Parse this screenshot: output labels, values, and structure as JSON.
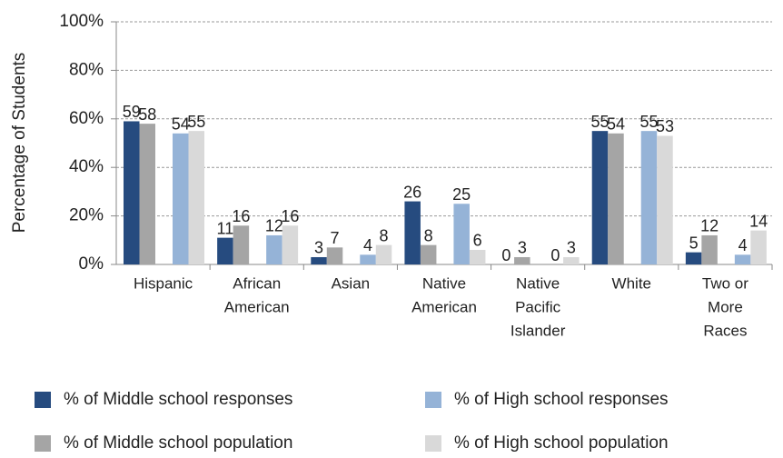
{
  "chart_data": {
    "type": "bar",
    "y_label": "Percentage of Students",
    "categories": [
      [
        "Hispanic"
      ],
      [
        "African",
        "American"
      ],
      [
        "Asian"
      ],
      [
        "Native",
        "American"
      ],
      [
        "Native",
        "Pacific",
        "Islander"
      ],
      [
        "White"
      ],
      [
        "Two or",
        "More",
        "Races"
      ]
    ],
    "series": [
      {
        "name": "% of Middle school responses",
        "color": "#264b7f",
        "values": [
          59,
          11,
          3,
          26,
          0,
          55,
          5
        ]
      },
      {
        "name": "% of Middle school population",
        "color": "#a5a5a5",
        "values": [
          58,
          16,
          7,
          8,
          3,
          54,
          12
        ]
      },
      {
        "name": "% of High school responses",
        "color": "#95b3d7",
        "values": [
          54,
          12,
          4,
          25,
          0,
          55,
          4
        ]
      },
      {
        "name": "% of High school population",
        "color": "#d9d9d9",
        "values": [
          55,
          16,
          8,
          6,
          3,
          53,
          14
        ]
      }
    ],
    "legend_order": [
      0,
      2,
      1,
      3
    ],
    "ylim": [
      0,
      100
    ],
    "yticks": [
      {
        "value": 0,
        "label": "0%"
      },
      {
        "value": 20,
        "label": "20%"
      },
      {
        "value": 40,
        "label": "40%"
      },
      {
        "value": 60,
        "label": "60%"
      },
      {
        "value": 80,
        "label": "80%"
      },
      {
        "value": 100,
        "label": "100%"
      }
    ],
    "grid": true
  }
}
